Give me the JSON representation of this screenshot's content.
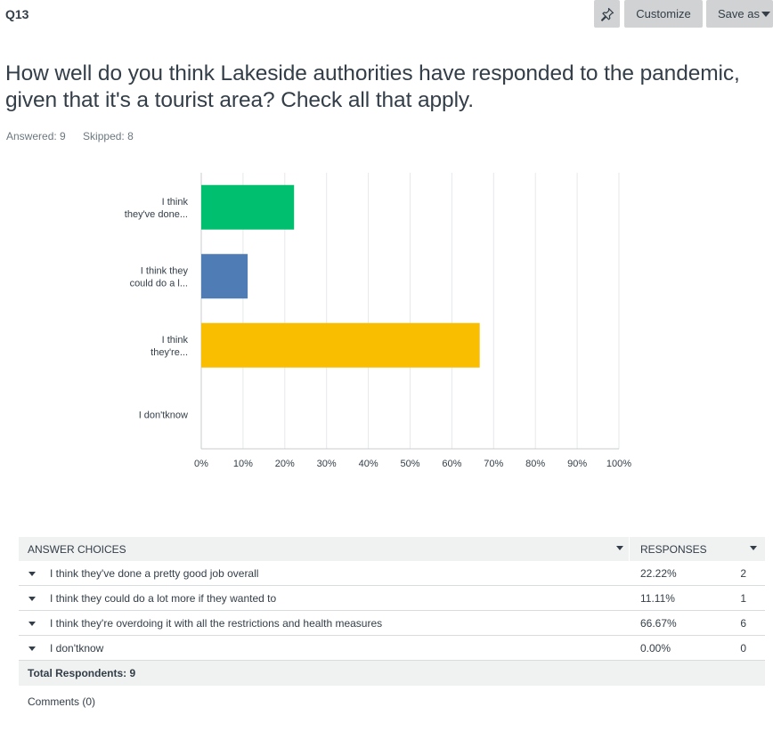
{
  "question": {
    "number": "Q13",
    "title_line1": "How well do you think Lakeside authorities have responded to the pandemic,",
    "title_line2": "given that it's a tourist area? Check all that apply.",
    "answered": "Answered: 9",
    "skipped": "Skipped: 8"
  },
  "toolbar": {
    "pin_icon": "pin-icon",
    "customize_label": "Customize",
    "save_label": "Save as"
  },
  "chart_data": {
    "type": "bar",
    "orientation": "horizontal",
    "categories": [
      [
        "I think",
        "they've done..."
      ],
      [
        "I think they",
        "could do a l..."
      ],
      [
        "I think",
        "they're..."
      ],
      [
        "I don'tknow"
      ]
    ],
    "values": [
      22.22,
      11.11,
      66.67,
      0
    ],
    "colors": [
      "#00bf6f",
      "#507cb6",
      "#f9be00",
      "#6bc8cd"
    ],
    "xlim": [
      0,
      100
    ],
    "xticks": [
      "0%",
      "10%",
      "20%",
      "30%",
      "40%",
      "50%",
      "60%",
      "70%",
      "80%",
      "90%",
      "100%"
    ],
    "grid": true,
    "legend": "none"
  },
  "table": {
    "header_choices": "ANSWER CHOICES",
    "header_responses": "RESPONSES",
    "rows": [
      {
        "label": "I think they've done a pretty good job overall",
        "percent": "22.22%",
        "count": "2"
      },
      {
        "label": "I think they could do a lot more if they wanted to",
        "percent": "11.11%",
        "count": "1"
      },
      {
        "label": "I think they're overdoing it with all the restrictions and health measures",
        "percent": "66.67%",
        "count": "6"
      },
      {
        "label": "I don'tknow",
        "percent": "0.00%",
        "count": "0"
      }
    ],
    "total": "Total Respondents: 9"
  },
  "comments": "Comments (0)"
}
